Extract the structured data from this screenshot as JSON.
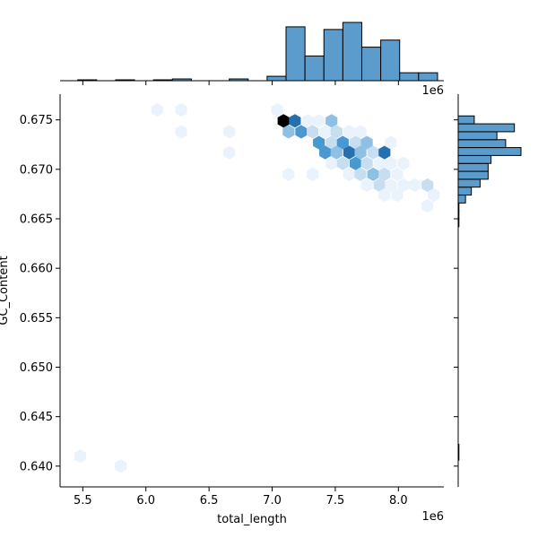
{
  "chart_data": {
    "type": "hexbin",
    "xlabel": "total_length",
    "ylabel": "GC_Content",
    "x_offset_label": "1e6",
    "top_offset_label": "1e6",
    "xlim": [
      5.32,
      8.36
    ],
    "ylim": [
      0.6379,
      0.6776
    ],
    "x_ticks": [
      5.5,
      6.0,
      6.5,
      7.0,
      7.5,
      8.0
    ],
    "x_tick_labels": [
      "5.5",
      "6.0",
      "6.5",
      "7.0",
      "7.5",
      "8.0"
    ],
    "y_ticks": [
      0.64,
      0.645,
      0.65,
      0.655,
      0.66,
      0.665,
      0.67,
      0.675
    ],
    "y_tick_labels": [
      "0.640",
      "0.645",
      "0.650",
      "0.655",
      "0.660",
      "0.665",
      "0.670",
      "0.675"
    ],
    "colors": {
      "hist_fill": "#5b9ccc",
      "hist_edge": "#000000",
      "hex_colormap": [
        "#eaf3fb",
        "#c6def0",
        "#8dc0e3",
        "#4a98d0",
        "#2770ae",
        "#10507f",
        "#000000"
      ]
    },
    "hexbins": [
      {
        "x": 5.48,
        "y": 0.641,
        "count": 1
      },
      {
        "x": 5.8,
        "y": 0.64,
        "count": 1
      },
      {
        "x": 6.09,
        "y": 0.676,
        "count": 1
      },
      {
        "x": 6.28,
        "y": 0.676,
        "count": 1
      },
      {
        "x": 6.28,
        "y": 0.6738,
        "count": 1
      },
      {
        "x": 6.66,
        "y": 0.6738,
        "count": 1
      },
      {
        "x": 6.66,
        "y": 0.6717,
        "count": 1
      },
      {
        "x": 7.04,
        "y": 0.676,
        "count": 1
      },
      {
        "x": 7.09,
        "y": 0.6749,
        "count": 7
      },
      {
        "x": 7.18,
        "y": 0.6749,
        "count": 5
      },
      {
        "x": 7.28,
        "y": 0.6749,
        "count": 1
      },
      {
        "x": 7.13,
        "y": 0.6738,
        "count": 3
      },
      {
        "x": 7.23,
        "y": 0.6738,
        "count": 4
      },
      {
        "x": 7.32,
        "y": 0.6738,
        "count": 2
      },
      {
        "x": 7.37,
        "y": 0.6749,
        "count": 1
      },
      {
        "x": 7.47,
        "y": 0.6749,
        "count": 3
      },
      {
        "x": 7.42,
        "y": 0.6738,
        "count": 1
      },
      {
        "x": 7.51,
        "y": 0.6738,
        "count": 2
      },
      {
        "x": 7.37,
        "y": 0.6727,
        "count": 4
      },
      {
        "x": 7.47,
        "y": 0.6727,
        "count": 2
      },
      {
        "x": 7.56,
        "y": 0.6727,
        "count": 4
      },
      {
        "x": 7.61,
        "y": 0.6738,
        "count": 1
      },
      {
        "x": 7.66,
        "y": 0.6727,
        "count": 2
      },
      {
        "x": 7.7,
        "y": 0.6738,
        "count": 1
      },
      {
        "x": 7.75,
        "y": 0.6727,
        "count": 3
      },
      {
        "x": 7.42,
        "y": 0.6717,
        "count": 4
      },
      {
        "x": 7.51,
        "y": 0.6717,
        "count": 3
      },
      {
        "x": 7.61,
        "y": 0.6717,
        "count": 5
      },
      {
        "x": 7.7,
        "y": 0.6717,
        "count": 3
      },
      {
        "x": 7.8,
        "y": 0.6717,
        "count": 2
      },
      {
        "x": 7.89,
        "y": 0.6717,
        "count": 5
      },
      {
        "x": 7.94,
        "y": 0.6727,
        "count": 1
      },
      {
        "x": 7.47,
        "y": 0.6706,
        "count": 1
      },
      {
        "x": 7.56,
        "y": 0.6706,
        "count": 2
      },
      {
        "x": 7.66,
        "y": 0.6706,
        "count": 4
      },
      {
        "x": 7.75,
        "y": 0.6706,
        "count": 2
      },
      {
        "x": 7.85,
        "y": 0.6706,
        "count": 1
      },
      {
        "x": 7.94,
        "y": 0.6706,
        "count": 1
      },
      {
        "x": 8.04,
        "y": 0.6706,
        "count": 1
      },
      {
        "x": 7.13,
        "y": 0.6695,
        "count": 1
      },
      {
        "x": 7.32,
        "y": 0.6695,
        "count": 1
      },
      {
        "x": 7.61,
        "y": 0.6695,
        "count": 1
      },
      {
        "x": 7.7,
        "y": 0.6695,
        "count": 2
      },
      {
        "x": 7.8,
        "y": 0.6695,
        "count": 3
      },
      {
        "x": 7.89,
        "y": 0.6695,
        "count": 2
      },
      {
        "x": 7.99,
        "y": 0.6695,
        "count": 1
      },
      {
        "x": 7.75,
        "y": 0.6684,
        "count": 1
      },
      {
        "x": 7.85,
        "y": 0.6684,
        "count": 2
      },
      {
        "x": 7.94,
        "y": 0.6684,
        "count": 1
      },
      {
        "x": 8.04,
        "y": 0.6684,
        "count": 1
      },
      {
        "x": 8.13,
        "y": 0.6684,
        "count": 1
      },
      {
        "x": 8.23,
        "y": 0.6684,
        "count": 2
      },
      {
        "x": 7.89,
        "y": 0.6674,
        "count": 1
      },
      {
        "x": 7.99,
        "y": 0.6674,
        "count": 1
      },
      {
        "x": 8.28,
        "y": 0.6674,
        "count": 1
      },
      {
        "x": 8.23,
        "y": 0.6663,
        "count": 1
      }
    ],
    "x_marginal_histogram": {
      "bins": [
        {
          "x0": 5.46,
          "x1": 5.61,
          "count": 1
        },
        {
          "x0": 5.61,
          "x1": 5.76,
          "count": 0
        },
        {
          "x0": 5.76,
          "x1": 5.91,
          "count": 1
        },
        {
          "x0": 5.91,
          "x1": 6.06,
          "count": 0
        },
        {
          "x0": 6.06,
          "x1": 6.21,
          "count": 1
        },
        {
          "x0": 6.21,
          "x1": 6.36,
          "count": 2
        },
        {
          "x0": 6.36,
          "x1": 6.51,
          "count": 0
        },
        {
          "x0": 6.51,
          "x1": 6.66,
          "count": 0
        },
        {
          "x0": 6.66,
          "x1": 6.81,
          "count": 2
        },
        {
          "x0": 6.81,
          "x1": 6.96,
          "count": 0
        },
        {
          "x0": 6.96,
          "x1": 7.11,
          "count": 5
        },
        {
          "x0": 7.11,
          "x1": 7.26,
          "count": 61
        },
        {
          "x0": 7.26,
          "x1": 7.41,
          "count": 28
        },
        {
          "x0": 7.41,
          "x1": 7.56,
          "count": 58
        },
        {
          "x0": 7.56,
          "x1": 7.71,
          "count": 66
        },
        {
          "x0": 7.71,
          "x1": 7.86,
          "count": 38
        },
        {
          "x0": 7.86,
          "x1": 8.01,
          "count": 46
        },
        {
          "x0": 8.01,
          "x1": 8.16,
          "count": 9
        },
        {
          "x0": 8.16,
          "x1": 8.31,
          "count": 9
        }
      ]
    },
    "y_marginal_histogram": {
      "bins": [
        {
          "y0": 0.6406,
          "y1": 0.6422,
          "count": 1
        },
        {
          "y0": 0.6642,
          "y1": 0.665,
          "count": 1
        },
        {
          "y0": 0.665,
          "y1": 0.6658,
          "count": 1
        },
        {
          "y0": 0.6658,
          "y1": 0.6666,
          "count": 1
        },
        {
          "y0": 0.6666,
          "y1": 0.6674,
          "count": 10
        },
        {
          "y0": 0.6674,
          "y1": 0.6682,
          "count": 18
        },
        {
          "y0": 0.6682,
          "y1": 0.669,
          "count": 30
        },
        {
          "y0": 0.669,
          "y1": 0.6698,
          "count": 41
        },
        {
          "y0": 0.6698,
          "y1": 0.6706,
          "count": 41
        },
        {
          "y0": 0.6706,
          "y1": 0.6714,
          "count": 45
        },
        {
          "y0": 0.6714,
          "y1": 0.6722,
          "count": 86
        },
        {
          "y0": 0.6722,
          "y1": 0.673,
          "count": 65
        },
        {
          "y0": 0.673,
          "y1": 0.6738,
          "count": 53
        },
        {
          "y0": 0.6738,
          "y1": 0.6746,
          "count": 77
        },
        {
          "y0": 0.6746,
          "y1": 0.6754,
          "count": 22
        }
      ]
    }
  }
}
